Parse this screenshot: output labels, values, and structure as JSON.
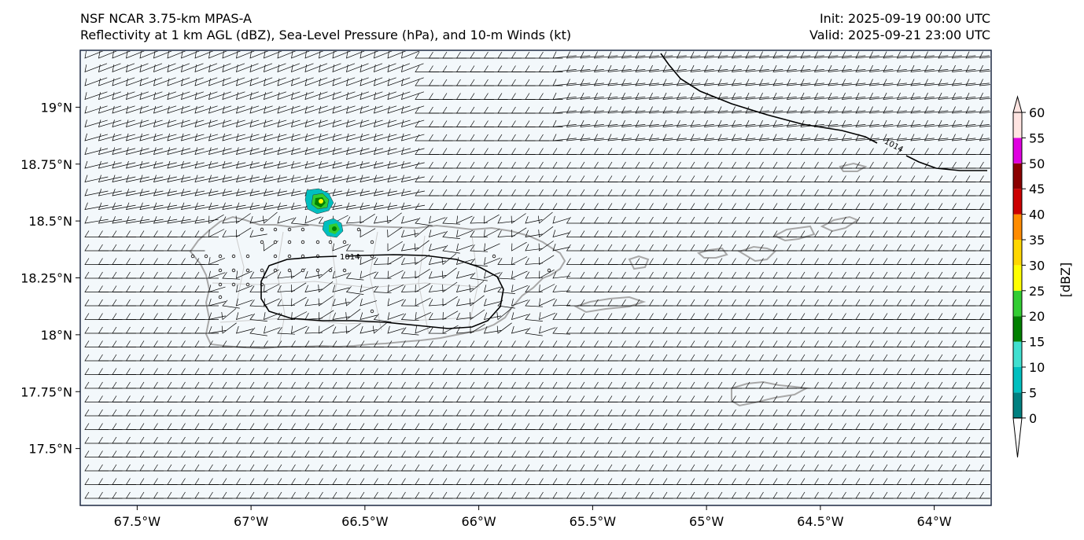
{
  "header": {
    "model": "NSF NCAR 3.75-km MPAS-A",
    "fields": "Reflectivity at 1 km AGL (dBZ), Sea-Level Pressure (hPa), and 10-m Winds (kt)",
    "init": "Init: 2025-09-19 00:00 UTC",
    "valid": "Valid: 2025-09-21 23:00 UTC"
  },
  "map": {
    "lon_range": [
      -67.75,
      -63.75
    ],
    "lat_range": [
      17.25,
      19.25
    ],
    "lon_ticks": [
      {
        "value": -67.5,
        "label": "67.5°W"
      },
      {
        "value": -67.0,
        "label": "67°W"
      },
      {
        "value": -66.5,
        "label": "66.5°W"
      },
      {
        "value": -66.0,
        "label": "66°W"
      },
      {
        "value": -65.5,
        "label": "65.5°W"
      },
      {
        "value": -65.0,
        "label": "65°W"
      },
      {
        "value": -64.5,
        "label": "64.5°W"
      },
      {
        "value": -64.0,
        "label": "64°W"
      }
    ],
    "lat_ticks": [
      {
        "value": 19.0,
        "label": "19°N"
      },
      {
        "value": 18.75,
        "label": "18.75°N"
      },
      {
        "value": 18.5,
        "label": "18.5°N"
      },
      {
        "value": 18.25,
        "label": "18.25°N"
      },
      {
        "value": 18.0,
        "label": "18°N"
      },
      {
        "value": 17.75,
        "label": "17.75°N"
      },
      {
        "value": 17.5,
        "label": "17.5°N"
      }
    ],
    "isobar_label": "1014",
    "colors": {
      "ocean": "#f3f8fb",
      "coast": "#a8a8a8",
      "isobar": "#000000",
      "barb": "#000000"
    }
  },
  "colorbar": {
    "label": "[dBZ]",
    "ticks": [
      0,
      5,
      10,
      15,
      20,
      25,
      30,
      35,
      40,
      45,
      50,
      55,
      60
    ],
    "colors": [
      "#008080",
      "#00bfbf",
      "#40e0d0",
      "#008000",
      "#32cd32",
      "#ffff00",
      "#ffd700",
      "#ff8c00",
      "#cc0000",
      "#8b0000",
      "#e000e0",
      "#ffe4e1"
    ]
  }
}
